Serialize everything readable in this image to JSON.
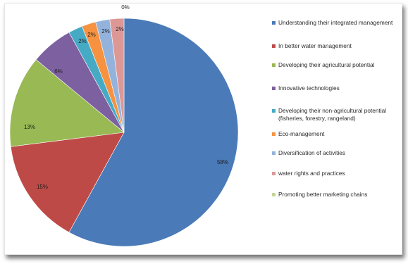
{
  "chart_data": {
    "type": "pie",
    "slices": [
      {
        "label": "Understanding their integrated management",
        "value": 58,
        "display": "58%",
        "color": "#4a7ab8"
      },
      {
        "label": "In better water management",
        "value": 15,
        "display": "15%",
        "color": "#be4a47"
      },
      {
        "label": "Developing their agricultural potential",
        "value": 13,
        "display": "13%",
        "color": "#98b954"
      },
      {
        "label": "Innovative technologies",
        "value": 6,
        "display": "6%",
        "color": "#7d60a0"
      },
      {
        "label": "Developing their non-agricultural potential (fisheries, forestry, rangeland)",
        "value": 2,
        "display": "2%",
        "color": "#46aac5"
      },
      {
        "label": "Eco-management",
        "value": 2,
        "display": "2%",
        "color": "#f69240"
      },
      {
        "label": "Diversification of activities",
        "value": 2,
        "display": "2%",
        "color": "#94b3dc"
      },
      {
        "label": "water rights and practices",
        "value": 2,
        "display": "2%",
        "color": "#dd9896"
      },
      {
        "label": "Promoting better marketing chains",
        "value": 0,
        "display": "0%",
        "color": "#c3d69b"
      }
    ],
    "start": "top",
    "direction": "clockwise",
    "legend_position": "right"
  }
}
